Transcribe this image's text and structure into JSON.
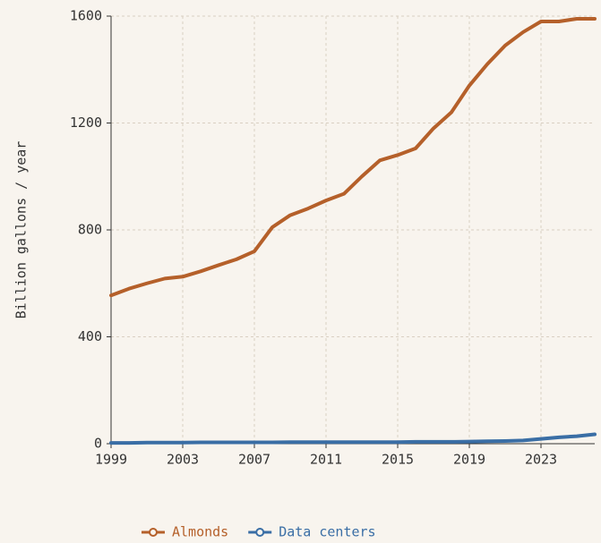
{
  "chart_data": {
    "type": "line",
    "y_label": "Billion gallons / year",
    "x": [
      1999,
      2000,
      2001,
      2002,
      2003,
      2004,
      2005,
      2006,
      2007,
      2008,
      2009,
      2010,
      2011,
      2012,
      2013,
      2014,
      2015,
      2016,
      2017,
      2018,
      2019,
      2020,
      2021,
      2022,
      2023,
      2024,
      2025,
      2026
    ],
    "series": [
      {
        "name": "Almonds",
        "color": "#b5602a",
        "values": [
          555,
          580,
          600,
          618,
          625,
          645,
          668,
          690,
          720,
          810,
          855,
          880,
          910,
          935,
          1000,
          1060,
          1080,
          1105,
          1180,
          1240,
          1340,
          1420,
          1490,
          1540,
          1580,
          1580,
          1590,
          1590
        ]
      },
      {
        "name": "Data centers",
        "color": "#3a6ea5",
        "values": [
          3,
          3,
          4,
          4,
          4,
          5,
          5,
          5,
          5,
          5,
          6,
          6,
          6,
          6,
          6,
          6,
          6,
          7,
          7,
          7,
          8,
          9,
          10,
          12,
          18,
          24,
          28,
          35
        ]
      }
    ],
    "xlim": [
      1999,
      2026
    ],
    "xticks": [
      1999,
      2003,
      2007,
      2011,
      2015,
      2019,
      2023
    ],
    "ylim": [
      0,
      1600
    ],
    "yticks": [
      0,
      400,
      800,
      1200,
      1600
    ],
    "grid": true,
    "legend": "bottom"
  }
}
